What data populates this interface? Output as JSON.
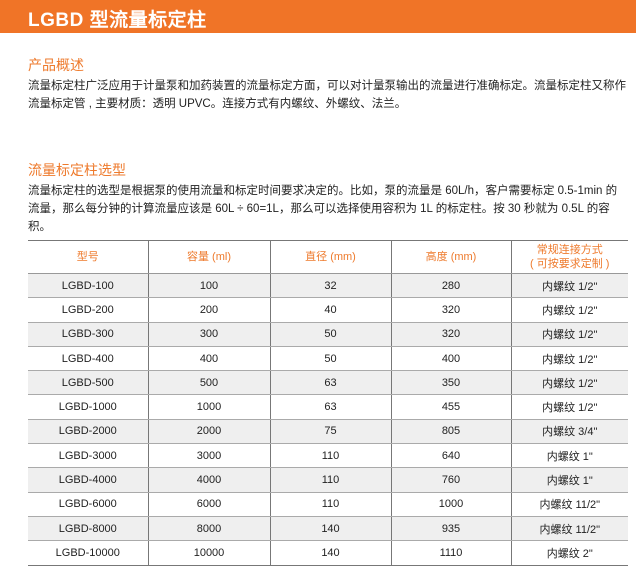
{
  "banner": {
    "title": "LGBD 型流量标定柱",
    "color": "#f07427"
  },
  "overview": {
    "title": "产品概述",
    "text": "流量标定柱广泛应用于计量泵和加药装置的流量标定方面，可以对计量泵输出的流量进行准确标定。流量标定柱又称作流量标定管 , 主要材质：透明 UPVC。连接方式有内螺纹、外螺纹、法兰。"
  },
  "selection": {
    "title": "流量标定柱选型",
    "text": "流量标定柱的选型是根据泵的使用流量和标定时间要求决定的。比如，泵的流量是 60L/h，客户需要标定 0.5-1min 的流量，那么每分钟的计算流量应该是 60L ÷ 60=1L，那么可以选择使用容积为 1L 的标定柱。按 30 秒就为 0.5L 的容积。"
  },
  "table": {
    "headers": [
      "型号",
      "容量 (ml)",
      "直径 (mm)",
      "高度 (mm)",
      "常规连接方式"
    ],
    "header_note": "( 可按要求定制 )",
    "rows": [
      [
        "LGBD-100",
        "100",
        "32",
        "280",
        "内螺纹 1/2\""
      ],
      [
        "LGBD-200",
        "200",
        "40",
        "320",
        "内螺纹 1/2\""
      ],
      [
        "LGBD-300",
        "300",
        "50",
        "320",
        "内螺纹 1/2\""
      ],
      [
        "LGBD-400",
        "400",
        "50",
        "400",
        "内螺纹 1/2\""
      ],
      [
        "LGBD-500",
        "500",
        "63",
        "350",
        "内螺纹 1/2\""
      ],
      [
        "LGBD-1000",
        "1000",
        "63",
        "455",
        "内螺纹 1/2\""
      ],
      [
        "LGBD-2000",
        "2000",
        "75",
        "805",
        "内螺纹 3/4\""
      ],
      [
        "LGBD-3000",
        "3000",
        "110",
        "640",
        "内螺纹 1\""
      ],
      [
        "LGBD-4000",
        "4000",
        "110",
        "760",
        "内螺纹 1\""
      ],
      [
        "LGBD-6000",
        "6000",
        "110",
        "1000",
        "内螺纹 11/2\""
      ],
      [
        "LGBD-8000",
        "8000",
        "140",
        "935",
        "内螺纹 11/2\""
      ],
      [
        "LGBD-10000",
        "10000",
        "140",
        "1110",
        "内螺纹 2\""
      ]
    ]
  }
}
